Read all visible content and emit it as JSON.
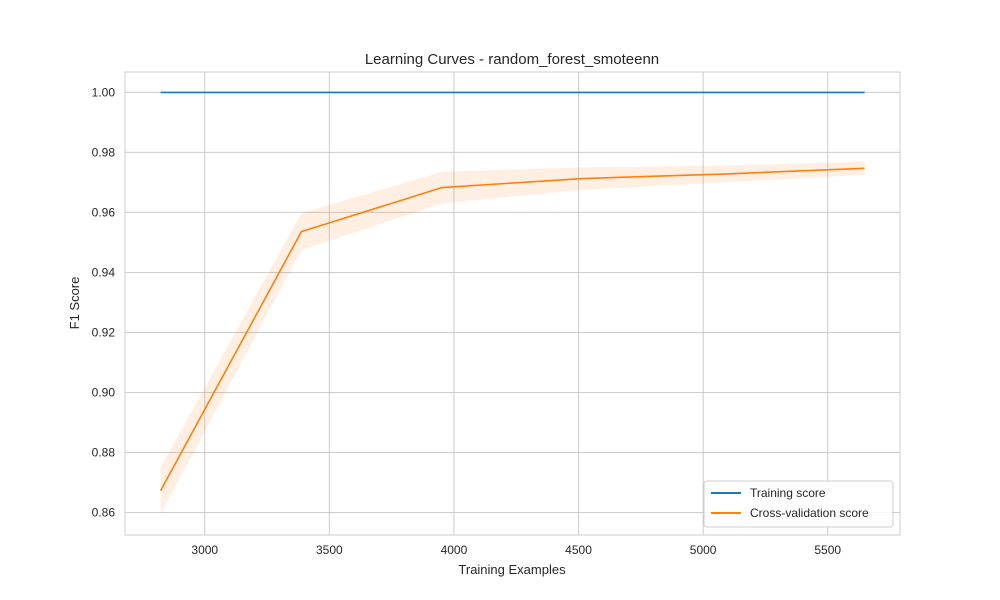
{
  "chart_data": {
    "type": "line",
    "title": "Learning Curves - random_forest_smoteenn",
    "xlabel": "Training Examples",
    "ylabel": "F1 Score",
    "xlim": [
      2680,
      5790
    ],
    "ylim": [
      0.8525,
      1.0068
    ],
    "x_ticks": [
      3000,
      3500,
      4000,
      4500,
      5000,
      5500
    ],
    "y_ticks": [
      0.86,
      0.88,
      0.9,
      0.92,
      0.94,
      0.96,
      0.98,
      1.0
    ],
    "x_tick_labels": [
      "3000",
      "3500",
      "4000",
      "4500",
      "5000",
      "5500"
    ],
    "y_tick_labels": [
      "0.86",
      "0.88",
      "0.90",
      "0.92",
      "0.94",
      "0.96",
      "0.98",
      "1.00"
    ],
    "grid": true,
    "legend_position": "bottom-right",
    "x": [
      2823,
      3388,
      3953,
      4518,
      5083,
      5648
    ],
    "series": [
      {
        "name": "Training score",
        "color": "#1f77b4",
        "values": [
          1.0,
          1.0,
          1.0,
          1.0,
          1.0,
          1.0
        ],
        "band_lower": [
          1.0,
          1.0,
          1.0,
          1.0,
          1.0,
          1.0
        ],
        "band_upper": [
          1.0,
          1.0,
          1.0,
          1.0,
          1.0,
          1.0
        ],
        "band_color": "#1f77b4"
      },
      {
        "name": "Cross-validation score",
        "color": "#ff7f0e",
        "values": [
          0.8673,
          0.9536,
          0.9683,
          0.9713,
          0.9728,
          0.9747
        ],
        "band_lower": [
          0.8595,
          0.9475,
          0.963,
          0.9676,
          0.97,
          0.9725
        ],
        "band_upper": [
          0.8751,
          0.9598,
          0.9736,
          0.975,
          0.9756,
          0.977
        ],
        "band_color": "#ff7f0e"
      }
    ]
  }
}
